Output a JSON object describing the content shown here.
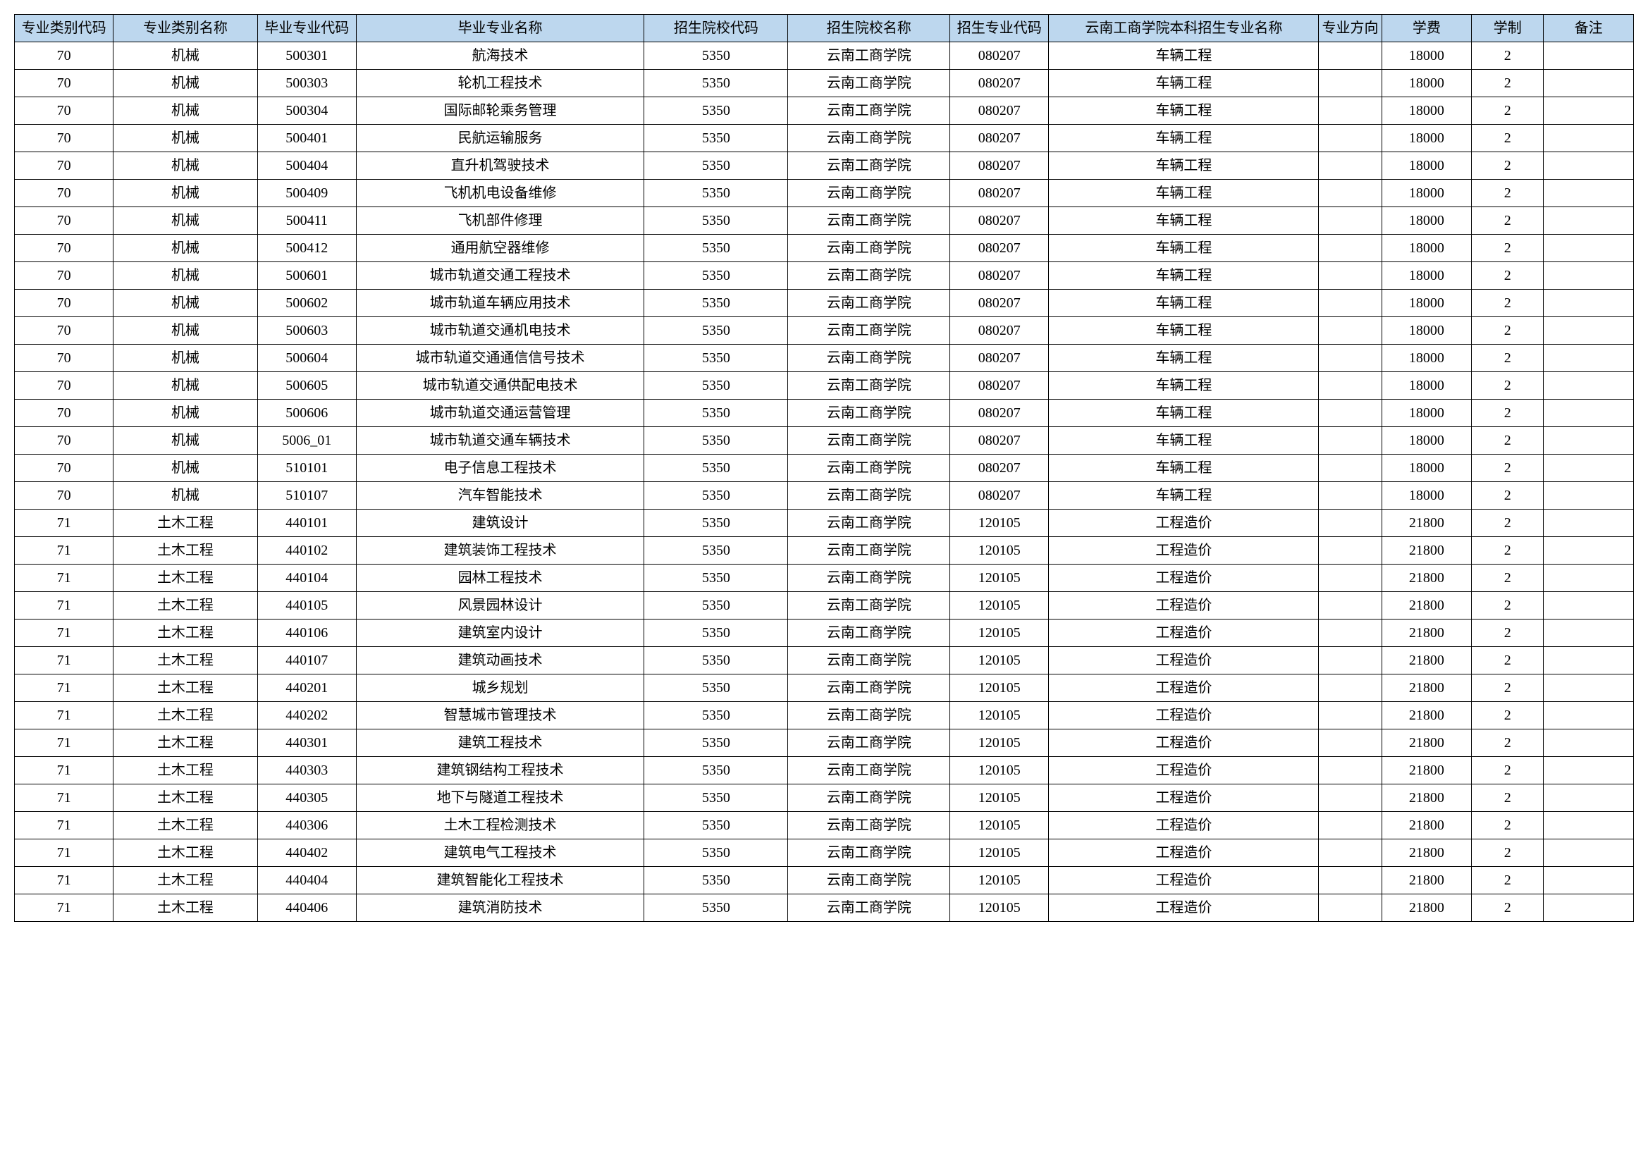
{
  "table": {
    "type": "table",
    "header_bg": "#bdd7ee",
    "border_color": "#000000",
    "background_color": "#ffffff",
    "font_family": "SimSun",
    "header_fontsize": 20,
    "cell_fontsize": 20,
    "columns": [
      {
        "label": "专业类别代码",
        "width_pct": 5.5
      },
      {
        "label": "专业类别名称",
        "width_pct": 8
      },
      {
        "label": "毕业专业代码",
        "width_pct": 5.5
      },
      {
        "label": "毕业专业名称",
        "width_pct": 16
      },
      {
        "label": "招生院校代码",
        "width_pct": 8
      },
      {
        "label": "招生院校名称",
        "width_pct": 9
      },
      {
        "label": "招生专业代码",
        "width_pct": 5.5
      },
      {
        "label": "云南工商学院本科招生专业名称",
        "width_pct": 15
      },
      {
        "label": "专业方向",
        "width_pct": 3.5
      },
      {
        "label": "学费",
        "width_pct": 5
      },
      {
        "label": "学制",
        "width_pct": 4
      },
      {
        "label": "备注",
        "width_pct": 5
      }
    ],
    "rows": [
      [
        "70",
        "机械",
        "500301",
        "航海技术",
        "5350",
        "云南工商学院",
        "080207",
        "车辆工程",
        "",
        "18000",
        "2",
        ""
      ],
      [
        "70",
        "机械",
        "500303",
        "轮机工程技术",
        "5350",
        "云南工商学院",
        "080207",
        "车辆工程",
        "",
        "18000",
        "2",
        ""
      ],
      [
        "70",
        "机械",
        "500304",
        "国际邮轮乘务管理",
        "5350",
        "云南工商学院",
        "080207",
        "车辆工程",
        "",
        "18000",
        "2",
        ""
      ],
      [
        "70",
        "机械",
        "500401",
        "民航运输服务",
        "5350",
        "云南工商学院",
        "080207",
        "车辆工程",
        "",
        "18000",
        "2",
        ""
      ],
      [
        "70",
        "机械",
        "500404",
        "直升机驾驶技术",
        "5350",
        "云南工商学院",
        "080207",
        "车辆工程",
        "",
        "18000",
        "2",
        ""
      ],
      [
        "70",
        "机械",
        "500409",
        "飞机机电设备维修",
        "5350",
        "云南工商学院",
        "080207",
        "车辆工程",
        "",
        "18000",
        "2",
        ""
      ],
      [
        "70",
        "机械",
        "500411",
        "飞机部件修理",
        "5350",
        "云南工商学院",
        "080207",
        "车辆工程",
        "",
        "18000",
        "2",
        ""
      ],
      [
        "70",
        "机械",
        "500412",
        "通用航空器维修",
        "5350",
        "云南工商学院",
        "080207",
        "车辆工程",
        "",
        "18000",
        "2",
        ""
      ],
      [
        "70",
        "机械",
        "500601",
        "城市轨道交通工程技术",
        "5350",
        "云南工商学院",
        "080207",
        "车辆工程",
        "",
        "18000",
        "2",
        ""
      ],
      [
        "70",
        "机械",
        "500602",
        "城市轨道车辆应用技术",
        "5350",
        "云南工商学院",
        "080207",
        "车辆工程",
        "",
        "18000",
        "2",
        ""
      ],
      [
        "70",
        "机械",
        "500603",
        "城市轨道交通机电技术",
        "5350",
        "云南工商学院",
        "080207",
        "车辆工程",
        "",
        "18000",
        "2",
        ""
      ],
      [
        "70",
        "机械",
        "500604",
        "城市轨道交通通信信号技术",
        "5350",
        "云南工商学院",
        "080207",
        "车辆工程",
        "",
        "18000",
        "2",
        ""
      ],
      [
        "70",
        "机械",
        "500605",
        "城市轨道交通供配电技术",
        "5350",
        "云南工商学院",
        "080207",
        "车辆工程",
        "",
        "18000",
        "2",
        ""
      ],
      [
        "70",
        "机械",
        "500606",
        "城市轨道交通运营管理",
        "5350",
        "云南工商学院",
        "080207",
        "车辆工程",
        "",
        "18000",
        "2",
        ""
      ],
      [
        "70",
        "机械",
        "5006_01",
        "城市轨道交通车辆技术",
        "5350",
        "云南工商学院",
        "080207",
        "车辆工程",
        "",
        "18000",
        "2",
        ""
      ],
      [
        "70",
        "机械",
        "510101",
        "电子信息工程技术",
        "5350",
        "云南工商学院",
        "080207",
        "车辆工程",
        "",
        "18000",
        "2",
        ""
      ],
      [
        "70",
        "机械",
        "510107",
        "汽车智能技术",
        "5350",
        "云南工商学院",
        "080207",
        "车辆工程",
        "",
        "18000",
        "2",
        ""
      ],
      [
        "71",
        "土木工程",
        "440101",
        "建筑设计",
        "5350",
        "云南工商学院",
        "120105",
        "工程造价",
        "",
        "21800",
        "2",
        ""
      ],
      [
        "71",
        "土木工程",
        "440102",
        "建筑装饰工程技术",
        "5350",
        "云南工商学院",
        "120105",
        "工程造价",
        "",
        "21800",
        "2",
        ""
      ],
      [
        "71",
        "土木工程",
        "440104",
        "园林工程技术",
        "5350",
        "云南工商学院",
        "120105",
        "工程造价",
        "",
        "21800",
        "2",
        ""
      ],
      [
        "71",
        "土木工程",
        "440105",
        "风景园林设计",
        "5350",
        "云南工商学院",
        "120105",
        "工程造价",
        "",
        "21800",
        "2",
        ""
      ],
      [
        "71",
        "土木工程",
        "440106",
        "建筑室内设计",
        "5350",
        "云南工商学院",
        "120105",
        "工程造价",
        "",
        "21800",
        "2",
        ""
      ],
      [
        "71",
        "土木工程",
        "440107",
        "建筑动画技术",
        "5350",
        "云南工商学院",
        "120105",
        "工程造价",
        "",
        "21800",
        "2",
        ""
      ],
      [
        "71",
        "土木工程",
        "440201",
        "城乡规划",
        "5350",
        "云南工商学院",
        "120105",
        "工程造价",
        "",
        "21800",
        "2",
        ""
      ],
      [
        "71",
        "土木工程",
        "440202",
        "智慧城市管理技术",
        "5350",
        "云南工商学院",
        "120105",
        "工程造价",
        "",
        "21800",
        "2",
        ""
      ],
      [
        "71",
        "土木工程",
        "440301",
        "建筑工程技术",
        "5350",
        "云南工商学院",
        "120105",
        "工程造价",
        "",
        "21800",
        "2",
        ""
      ],
      [
        "71",
        "土木工程",
        "440303",
        "建筑钢结构工程技术",
        "5350",
        "云南工商学院",
        "120105",
        "工程造价",
        "",
        "21800",
        "2",
        ""
      ],
      [
        "71",
        "土木工程",
        "440305",
        "地下与隧道工程技术",
        "5350",
        "云南工商学院",
        "120105",
        "工程造价",
        "",
        "21800",
        "2",
        ""
      ],
      [
        "71",
        "土木工程",
        "440306",
        "土木工程检测技术",
        "5350",
        "云南工商学院",
        "120105",
        "工程造价",
        "",
        "21800",
        "2",
        ""
      ],
      [
        "71",
        "土木工程",
        "440402",
        "建筑电气工程技术",
        "5350",
        "云南工商学院",
        "120105",
        "工程造价",
        "",
        "21800",
        "2",
        ""
      ],
      [
        "71",
        "土木工程",
        "440404",
        "建筑智能化工程技术",
        "5350",
        "云南工商学院",
        "120105",
        "工程造价",
        "",
        "21800",
        "2",
        ""
      ],
      [
        "71",
        "土木工程",
        "440406",
        "建筑消防技术",
        "5350",
        "云南工商学院",
        "120105",
        "工程造价",
        "",
        "21800",
        "2",
        ""
      ]
    ]
  }
}
